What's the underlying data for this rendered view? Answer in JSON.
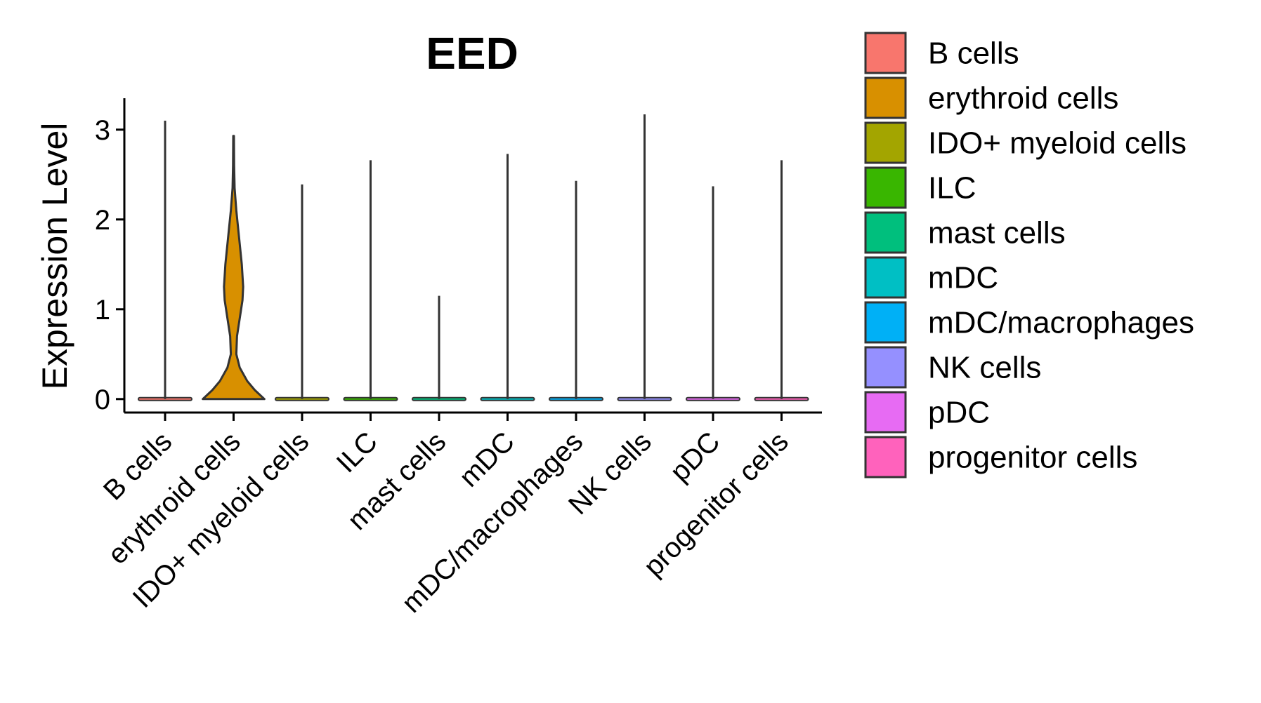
{
  "chart_data": {
    "type": "violin",
    "title": "EED",
    "xlabel": "",
    "ylabel": "Expression Level",
    "ylim": [
      -0.15,
      3.35
    ],
    "yticks": [
      0,
      1,
      2,
      3
    ],
    "categories": [
      "B cells",
      "erythroid cells",
      "IDO+ myeloid cells",
      "ILC",
      "mast cells",
      "mDC",
      "mDC/macrophages",
      "NK cells",
      "pDC",
      "progenitor cells"
    ],
    "max_values": [
      3.1,
      2.93,
      2.39,
      2.66,
      1.15,
      2.73,
      2.43,
      3.17,
      2.37,
      2.66
    ],
    "violins": [
      {
        "name": "erythroid cells",
        "density_profile": [
          {
            "y": 0.0,
            "width": 0.45
          },
          {
            "y": 0.1,
            "width": 0.31
          },
          {
            "y": 0.2,
            "width": 0.2
          },
          {
            "y": 0.35,
            "width": 0.09
          },
          {
            "y": 0.5,
            "width": 0.04
          },
          {
            "y": 0.7,
            "width": 0.05
          },
          {
            "y": 0.9,
            "width": 0.09
          },
          {
            "y": 1.1,
            "width": 0.13
          },
          {
            "y": 1.25,
            "width": 0.14
          },
          {
            "y": 1.5,
            "width": 0.12
          },
          {
            "y": 1.8,
            "width": 0.08
          },
          {
            "y": 2.1,
            "width": 0.04
          },
          {
            "y": 2.35,
            "width": 0.015
          },
          {
            "y": 2.6,
            "width": 0.008
          },
          {
            "y": 2.93,
            "width": 0.005
          }
        ]
      }
    ],
    "colors": [
      "#F8766D",
      "#D89000",
      "#A3A500",
      "#39B600",
      "#00BF7D",
      "#00BFC4",
      "#00B0F6",
      "#9590FF",
      "#E76BF3",
      "#FF62BC"
    ],
    "legend": {
      "position": "right",
      "entries": [
        "B cells",
        "erythroid cells",
        "IDO+ myeloid cells",
        "ILC",
        "mast cells",
        "mDC",
        "mDC/macrophages",
        "NK cells",
        "pDC",
        "progenitor cells"
      ]
    }
  }
}
